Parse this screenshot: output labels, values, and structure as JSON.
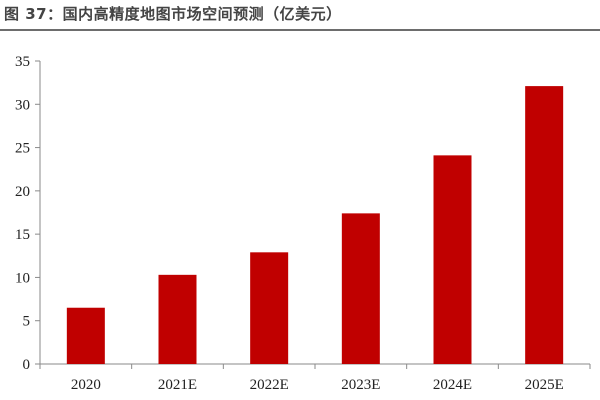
{
  "title": "图 37：国内高精度地图市场空间预测（亿美元）",
  "chart_data": {
    "type": "bar",
    "title": "图 37：国内高精度地图市场空间预测（亿美元）",
    "categories": [
      "2020",
      "2021E",
      "2022E",
      "2023E",
      "2024E",
      "2025E"
    ],
    "values": [
      6.5,
      10.3,
      12.9,
      17.4,
      24.1,
      32.1
    ],
    "xlabel": "",
    "ylabel": "",
    "ylim": [
      0,
      35
    ],
    "yticks": [
      "0",
      "5",
      "10",
      "15",
      "20",
      "25",
      "30",
      "35"
    ],
    "grid": false,
    "legend": "none",
    "bar_color": "#c00000"
  }
}
